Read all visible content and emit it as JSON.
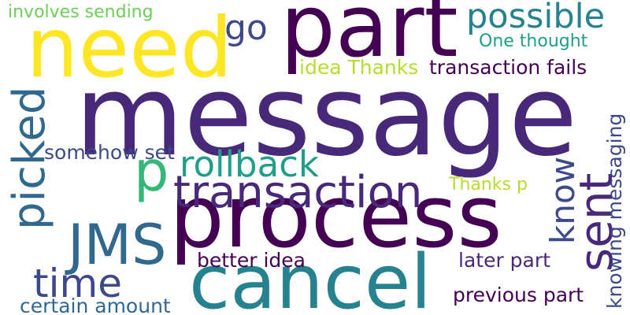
{
  "palette": {
    "background": "#ffffff",
    "dark_purple": "#440154",
    "purple": "#482878",
    "indigo": "#3e4989",
    "blue": "#31688e",
    "teal": "#26828e",
    "green_teal": "#1f9e89",
    "green": "#35b779",
    "lime": "#6ece58",
    "yellow_green": "#b5de2b",
    "yellow": "#fde725"
  },
  "words": [
    {
      "text": "message",
      "color": "#482878",
      "orientation": "horizontal"
    },
    {
      "text": "part",
      "color": "#440154",
      "orientation": "horizontal"
    },
    {
      "text": "need",
      "color": "#fde725",
      "orientation": "horizontal"
    },
    {
      "text": "process",
      "color": "#440154",
      "orientation": "horizontal"
    },
    {
      "text": "cancel",
      "color": "#26828e",
      "orientation": "horizontal"
    },
    {
      "text": "transaction",
      "color": "#482878",
      "orientation": "horizontal"
    },
    {
      "text": "JMS",
      "color": "#31688e",
      "orientation": "horizontal"
    },
    {
      "text": "p",
      "color": "#35b779",
      "orientation": "horizontal"
    },
    {
      "text": "picked",
      "color": "#31688e",
      "orientation": "vertical"
    },
    {
      "text": "time",
      "color": "#3e4989",
      "orientation": "horizontal"
    },
    {
      "text": "sent",
      "color": "#482878",
      "orientation": "vertical"
    },
    {
      "text": "rollback",
      "color": "#1f9e89",
      "orientation": "horizontal"
    },
    {
      "text": "possible",
      "color": "#26828e",
      "orientation": "horizontal"
    },
    {
      "text": "go",
      "color": "#3e4989",
      "orientation": "horizontal"
    },
    {
      "text": "know",
      "color": "#3e4989",
      "orientation": "vertical"
    },
    {
      "text": "better idea",
      "color": "#440154",
      "orientation": "horizontal"
    },
    {
      "text": "involves sending",
      "color": "#6ece58",
      "orientation": "horizontal"
    },
    {
      "text": "One thought",
      "color": "#1f9e89",
      "orientation": "horizontal"
    },
    {
      "text": "transaction fails",
      "color": "#440154",
      "orientation": "horizontal"
    },
    {
      "text": "idea Thanks",
      "color": "#b5de2b",
      "orientation": "horizontal"
    },
    {
      "text": "somehow set",
      "color": "#3e4989",
      "orientation": "horizontal"
    },
    {
      "text": "Thanks p",
      "color": "#b5de2b",
      "orientation": "horizontal"
    },
    {
      "text": "knowing messaging",
      "color": "#3e4989",
      "orientation": "vertical"
    },
    {
      "text": "later part",
      "color": "#482878",
      "orientation": "horizontal"
    },
    {
      "text": "previous part",
      "color": "#440154",
      "orientation": "horizontal"
    },
    {
      "text": "certain amount",
      "color": "#31688e",
      "orientation": "horizontal"
    }
  ]
}
